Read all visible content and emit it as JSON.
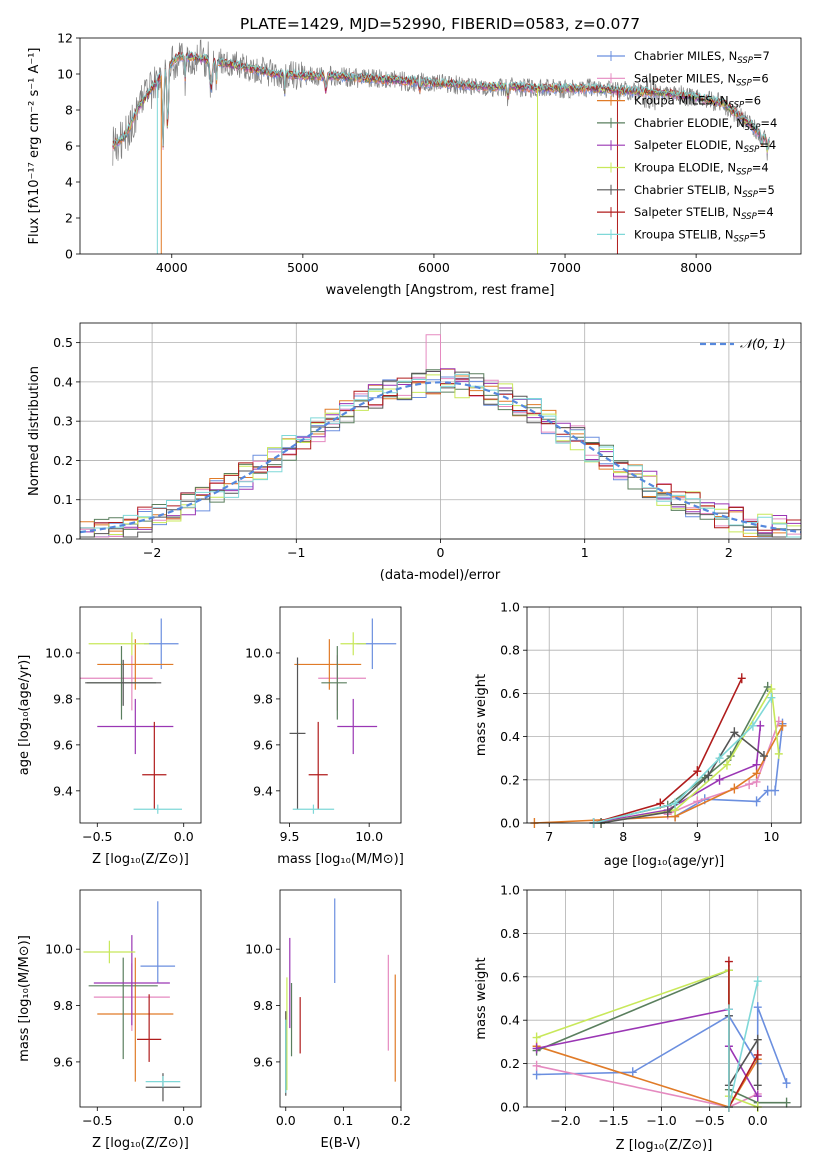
{
  "colors": {
    "chabrier_miles": "#6b8fdf",
    "salpeter_miles": "#e58ac0",
    "kroupa_miles": "#e07b28",
    "chabrier_elodie": "#5a7f5e",
    "salpeter_elodie": "#9a36b4",
    "kroupa_elodie": "#c8e85a",
    "chabrier_stelib": "#555555",
    "salpeter_stelib": "#b01c1c",
    "kroupa_stelib": "#7fd8d8",
    "gray_data": "#808080",
    "gauss": "#5588dd"
  },
  "chart_data": [
    {
      "id": "spectrum",
      "type": "line",
      "title": "PLATE=1429, MJD=52990, FIBERID=0583, z=0.077",
      "xlabel": "wavelength [Angstrom, rest frame]",
      "ylabel": "Flux [fλ10⁻¹⁷ erg cm⁻² s⁻¹ A⁻¹]",
      "xlim": [
        3300,
        8800
      ],
      "ylim": [
        0,
        12
      ],
      "xticks": [
        4000,
        5000,
        6000,
        7000,
        8000
      ],
      "yticks": [
        0,
        2,
        4,
        6,
        8,
        10,
        12
      ],
      "grid": false,
      "legend_position": "upper right",
      "legend": [
        "Chabrier MILES, N_SSP=7",
        "Salpeter MILES, N_SSP=6",
        "Kroupa MILES, N_SSP=6",
        "Chabrier ELODIE, N_SSP=4",
        "Salpeter ELODIE, N_SSP=4",
        "Kroupa ELODIE, N_SSP=4",
        "Chabrier STELIB, N_SSP=5",
        "Salpeter STELIB, N_SSP=4",
        "Kroupa STELIB, N_SSP=5"
      ],
      "model_continuum": {
        "x": [
          3550,
          3650,
          3750,
          3850,
          3950,
          4050,
          4200,
          4400,
          4600,
          4800,
          5000,
          5200,
          5400,
          5600,
          5800,
          6000,
          6200,
          6400,
          6600,
          6800,
          7000,
          7200,
          7400,
          7600,
          7800,
          8000,
          8200,
          8400,
          8550
        ],
        "y": [
          6.0,
          6.6,
          8.2,
          9.2,
          10.2,
          11.0,
          10.9,
          10.6,
          10.3,
          10.0,
          9.9,
          9.9,
          9.8,
          9.7,
          9.6,
          9.5,
          9.4,
          9.3,
          9.3,
          9.2,
          9.2,
          9.2,
          9.1,
          9.0,
          8.9,
          8.7,
          8.4,
          7.3,
          6.2
        ]
      }
    },
    {
      "id": "residuals",
      "type": "line",
      "xlabel": "(data-model)/error",
      "ylabel": "Normed distribution",
      "xlim": [
        -2.5,
        2.5
      ],
      "ylim": [
        0,
        0.55
      ],
      "xticks": [
        -2,
        -1,
        0,
        1,
        2
      ],
      "yticks": [
        0.0,
        0.1,
        0.2,
        0.3,
        0.4,
        0.5
      ],
      "grid": true,
      "legend_position": "upper right",
      "gauss_label": "𝒩(0, 1)",
      "hist_bin_width": 0.1
    },
    {
      "id": "age_vs_Z",
      "type": "scatter",
      "xlabel": "Z [log₁₀(Z/Z⊙)]",
      "ylabel": "age  [log₁₀(age/yr)]",
      "xlim": [
        -0.6,
        0.1
      ],
      "ylim": [
        9.26,
        10.2
      ],
      "xticks": [
        -0.5,
        0.0
      ],
      "yticks": [
        9.4,
        9.6,
        9.8,
        10.0
      ],
      "grid": false,
      "points": [
        {
          "model": "chabrier_miles",
          "x": -0.13,
          "xerr": [
            0.1,
            0.1
          ],
          "y": 10.04,
          "yerr": [
            0.11,
            0.11
          ]
        },
        {
          "model": "salpeter_miles",
          "x": -0.3,
          "xerr": [
            0.3,
            0.12
          ],
          "y": 9.89,
          "yerr": [
            0.14,
            0.1
          ]
        },
        {
          "model": "kroupa_miles",
          "x": -0.28,
          "xerr": [
            0.22,
            0.22
          ],
          "y": 9.95,
          "yerr": [
            0.11,
            0.11
          ]
        },
        {
          "model": "chabrier_elodie",
          "x": -0.36,
          "xerr": [
            0.2,
            0.2
          ],
          "y": 9.87,
          "yerr": [
            0.16,
            0.16
          ]
        },
        {
          "model": "salpeter_elodie",
          "x": -0.28,
          "xerr": [
            0.22,
            0.22
          ],
          "y": 9.68,
          "yerr": [
            0.12,
            0.12
          ]
        },
        {
          "model": "kroupa_elodie",
          "x": -0.3,
          "xerr": [
            0.25,
            0.1
          ],
          "y": 10.04,
          "yerr": [
            0.05,
            0.05
          ]
        },
        {
          "model": "chabrier_stelib",
          "x": -0.35,
          "xerr": [
            0.22,
            0.22
          ],
          "y": 9.87,
          "yerr": [
            0.1,
            0.1
          ]
        },
        {
          "model": "salpeter_stelib",
          "x": -0.17,
          "xerr": [
            0.07,
            0.07
          ],
          "y": 9.47,
          "yerr": [
            0.15,
            0.23
          ]
        },
        {
          "model": "kroupa_stelib",
          "x": -0.15,
          "xerr": [
            0.14,
            0.14
          ],
          "y": 9.32,
          "yerr": [
            0.02,
            0.02
          ]
        }
      ]
    },
    {
      "id": "age_vs_mass",
      "type": "scatter",
      "xlabel": "mass [log₁₀(M/M⊙)]",
      "xlim": [
        9.44,
        10.2
      ],
      "ylim": [
        9.26,
        10.2
      ],
      "xticks": [
        9.5,
        10.0
      ],
      "yticks": [
        9.4,
        9.6,
        9.8,
        10.0
      ],
      "grid": false,
      "points": [
        {
          "model": "chabrier_miles",
          "x": 10.02,
          "xerr": [
            0.1,
            0.15
          ],
          "y": 10.04,
          "yerr": [
            0.11,
            0.11
          ]
        },
        {
          "model": "salpeter_miles",
          "x": 9.8,
          "xerr": [
            0.12,
            0.18
          ],
          "y": 9.89,
          "yerr": [
            0.14,
            0.1
          ]
        },
        {
          "model": "kroupa_miles",
          "x": 9.75,
          "xerr": [
            0.22,
            0.2
          ],
          "y": 9.95,
          "yerr": [
            0.11,
            0.11
          ]
        },
        {
          "model": "chabrier_elodie",
          "x": 9.8,
          "xerr": [
            0.1,
            0.06
          ],
          "y": 9.87,
          "yerr": [
            0.16,
            0.16
          ]
        },
        {
          "model": "salpeter_elodie",
          "x": 9.9,
          "xerr": [
            0.1,
            0.15
          ],
          "y": 9.68,
          "yerr": [
            0.12,
            0.12
          ]
        },
        {
          "model": "kroupa_elodie",
          "x": 9.9,
          "xerr": [
            0.08,
            0.08
          ],
          "y": 10.04,
          "yerr": [
            0.05,
            0.05
          ]
        },
        {
          "model": "chabrier_stelib",
          "x": 9.55,
          "xerr": [
            0.05,
            0.05
          ],
          "y": 9.65,
          "yerr": [
            0.33,
            0.33
          ]
        },
        {
          "model": "salpeter_stelib",
          "x": 9.68,
          "xerr": [
            0.06,
            0.06
          ],
          "y": 9.47,
          "yerr": [
            0.15,
            0.23
          ]
        },
        {
          "model": "kroupa_stelib",
          "x": 9.65,
          "xerr": [
            0.13,
            0.13
          ],
          "y": 9.32,
          "yerr": [
            0.02,
            0.02
          ]
        }
      ]
    },
    {
      "id": "massweight_vs_age",
      "type": "line",
      "xlabel": "age  [log₁₀(age/yr)]",
      "ylabel": "mass weight",
      "xlim": [
        6.7,
        10.4
      ],
      "ylim": [
        0,
        1
      ],
      "xticks": [
        7,
        8,
        9,
        10
      ],
      "yticks": [
        0.0,
        0.2,
        0.4,
        0.6,
        0.8,
        1.0
      ],
      "grid": true,
      "series": [
        {
          "model": "chabrier_miles",
          "x": [
            8.7,
            9.1,
            9.8,
            9.95,
            10.05,
            10.15
          ],
          "y": [
            0.03,
            0.11,
            0.1,
            0.15,
            0.15,
            0.46
          ]
        },
        {
          "model": "salpeter_miles",
          "x": [
            8.6,
            9.0,
            9.7,
            9.8,
            10.1
          ],
          "y": [
            0.04,
            0.1,
            0.18,
            0.19,
            0.47
          ]
        },
        {
          "model": "kroupa_miles",
          "x": [
            6.8,
            8.7,
            9.5,
            9.8,
            10.15
          ],
          "y": [
            0.0,
            0.03,
            0.16,
            0.23,
            0.45
          ]
        },
        {
          "model": "chabrier_elodie",
          "x": [
            7.6,
            8.6,
            9.1,
            9.45,
            9.95
          ],
          "y": [
            0.0,
            0.08,
            0.21,
            0.31,
            0.63
          ]
        },
        {
          "model": "salpeter_elodie",
          "x": [
            7.6,
            8.6,
            9.3,
            9.8,
            9.85
          ],
          "y": [
            0.0,
            0.06,
            0.2,
            0.27,
            0.45
          ]
        },
        {
          "model": "kroupa_elodie",
          "x": [
            7.7,
            8.7,
            9.4,
            10.0,
            10.1
          ],
          "y": [
            0.0,
            0.06,
            0.27,
            0.62,
            0.32
          ]
        },
        {
          "model": "chabrier_stelib",
          "x": [
            7.7,
            8.6,
            9.15,
            9.5,
            9.9
          ],
          "y": [
            0.0,
            0.05,
            0.22,
            0.42,
            0.31
          ]
        },
        {
          "model": "salpeter_stelib",
          "x": [
            7.6,
            8.5,
            9.0,
            9.6
          ],
          "y": [
            0.0,
            0.09,
            0.24,
            0.67
          ]
        },
        {
          "model": "kroupa_stelib",
          "x": [
            7.6,
            8.7,
            9.3,
            9.75,
            10.0
          ],
          "y": [
            0.0,
            0.09,
            0.3,
            0.45,
            0.58
          ]
        }
      ]
    },
    {
      "id": "mass_vs_Z",
      "type": "scatter",
      "xlabel": "Z [log₁₀(Z/Z⊙)]",
      "ylabel": "mass [log₁₀(M/M⊙)]",
      "xlim": [
        -0.6,
        0.1
      ],
      "ylim": [
        9.44,
        10.21
      ],
      "xticks": [
        -0.5,
        0.0
      ],
      "yticks": [
        9.6,
        9.8,
        10.0
      ],
      "grid": false,
      "points": [
        {
          "model": "chabrier_miles",
          "x": -0.15,
          "xerr": [
            0.1,
            0.1
          ],
          "y": 9.94,
          "yerr": [
            0.06,
            0.23
          ]
        },
        {
          "model": "salpeter_miles",
          "x": -0.3,
          "xerr": [
            0.22,
            0.22
          ],
          "y": 9.83,
          "yerr": [
            0.12,
            0.12
          ]
        },
        {
          "model": "kroupa_miles",
          "x": -0.28,
          "xerr": [
            0.22,
            0.22
          ],
          "y": 9.77,
          "yerr": [
            0.24,
            0.2
          ]
        },
        {
          "model": "chabrier_elodie",
          "x": -0.35,
          "xerr": [
            0.2,
            0.2
          ],
          "y": 9.87,
          "yerr": [
            0.26,
            0.1
          ]
        },
        {
          "model": "salpeter_elodie",
          "x": -0.3,
          "xerr": [
            0.22,
            0.22
          ],
          "y": 9.88,
          "yerr": [
            0.15,
            0.17
          ]
        },
        {
          "model": "kroupa_elodie",
          "x": -0.43,
          "xerr": [
            0.15,
            0.15
          ],
          "y": 9.99,
          "yerr": [
            0.04,
            0.04
          ]
        },
        {
          "model": "chabrier_stelib",
          "x": -0.12,
          "xerr": [
            0.1,
            0.1
          ],
          "y": 9.51,
          "yerr": [
            0.05,
            0.05
          ]
        },
        {
          "model": "salpeter_stelib",
          "x": -0.2,
          "xerr": [
            0.07,
            0.07
          ],
          "y": 9.68,
          "yerr": [
            0.08,
            0.16
          ]
        },
        {
          "model": "kroupa_stelib",
          "x": -0.12,
          "xerr": [
            0.1,
            0.1
          ],
          "y": 9.53,
          "yerr": [
            0.02,
            0.02
          ]
        }
      ]
    },
    {
      "id": "mass_vs_ebv",
      "type": "scatter",
      "xlabel": "E(B-V)",
      "xlim": [
        -0.01,
        0.2
      ],
      "ylim": [
        9.44,
        10.21
      ],
      "xticks": [
        0.0,
        0.1,
        0.2
      ],
      "yticks": [
        9.6,
        9.8,
        10.0
      ],
      "grid": false,
      "points": [
        {
          "model": "chabrier_miles",
          "x": 0.085,
          "xerr": [
            0,
            0
          ],
          "y": 10.03,
          "yerr": [
            0.15,
            0.15
          ]
        },
        {
          "model": "salpeter_miles",
          "x": 0.178,
          "xerr": [
            0,
            0
          ],
          "y": 9.81,
          "yerr": [
            0.17,
            0.17
          ]
        },
        {
          "model": "kroupa_miles",
          "x": 0.19,
          "xerr": [
            0,
            0
          ],
          "y": 9.72,
          "yerr": [
            0.19,
            0.19
          ]
        },
        {
          "model": "chabrier_elodie",
          "x": 0.01,
          "xerr": [
            0,
            0
          ],
          "y": 9.75,
          "yerr": [
            0.13,
            0.13
          ]
        },
        {
          "model": "salpeter_elodie",
          "x": 0.007,
          "xerr": [
            0,
            0
          ],
          "y": 9.88,
          "yerr": [
            0.16,
            0.16
          ]
        },
        {
          "model": "kroupa_elodie",
          "x": 0.002,
          "xerr": [
            0,
            0
          ],
          "y": 9.7,
          "yerr": [
            0.2,
            0.2
          ]
        },
        {
          "model": "chabrier_stelib",
          "x": 0.0,
          "xerr": [
            0,
            0
          ],
          "y": 9.63,
          "yerr": [
            0.15,
            0.15
          ]
        },
        {
          "model": "salpeter_stelib",
          "x": 0.025,
          "xerr": [
            0,
            0
          ],
          "y": 9.73,
          "yerr": [
            0.1,
            0.1
          ]
        },
        {
          "model": "kroupa_stelib",
          "x": 0.0,
          "xerr": [
            0,
            0
          ],
          "y": 9.62,
          "yerr": [
            0.13,
            0.13
          ]
        }
      ]
    },
    {
      "id": "massweight_vs_Z",
      "type": "line",
      "xlabel": "Z [log₁₀(Z/Z⊙)]",
      "ylabel": "mass weight",
      "xlim": [
        -2.4,
        0.45
      ],
      "ylim": [
        0,
        1
      ],
      "xticks": [
        -2.0,
        -1.5,
        -1.0,
        -0.5,
        0.0
      ],
      "yticks": [
        0.0,
        0.2,
        0.4,
        0.6,
        0.8,
        1.0
      ],
      "grid": true,
      "series": [
        {
          "model": "chabrier_miles",
          "x": [
            -2.3,
            -1.3,
            -0.3,
            0.0,
            0.0,
            0.3
          ],
          "y": [
            0.15,
            0.16,
            0.42,
            0.2,
            0.46,
            0.11
          ]
        },
        {
          "model": "salpeter_miles",
          "x": [
            -2.3,
            -0.3,
            0.0
          ],
          "y": [
            0.19,
            0.0,
            0.06
          ]
        },
        {
          "model": "kroupa_miles",
          "x": [
            -2.3,
            -0.3,
            0.0
          ],
          "y": [
            0.28,
            0.0,
            0.22
          ]
        },
        {
          "model": "chabrier_elodie",
          "x": [
            -2.3,
            -0.3,
            -0.3,
            0.0,
            0.3
          ],
          "y": [
            0.26,
            0.63,
            0.08,
            0.02,
            0.02
          ]
        },
        {
          "model": "salpeter_elodie",
          "x": [
            -2.3,
            -0.3,
            -0.3,
            0.0
          ],
          "y": [
            0.27,
            0.45,
            0.28,
            0.05
          ]
        },
        {
          "model": "kroupa_elodie",
          "x": [
            -2.3,
            -0.3,
            -0.3,
            0.0
          ],
          "y": [
            0.32,
            0.63,
            0.05,
            0.0
          ]
        },
        {
          "model": "chabrier_stelib",
          "x": [
            -0.3,
            -0.3,
            0.0,
            0.0
          ],
          "y": [
            0.42,
            0.1,
            0.31,
            0.1
          ]
        },
        {
          "model": "salpeter_stelib",
          "x": [
            -0.3,
            -0.3,
            0.0
          ],
          "y": [
            0.67,
            0.0,
            0.24
          ]
        },
        {
          "model": "kroupa_stelib",
          "x": [
            -0.3,
            -0.3,
            0.0
          ],
          "y": [
            0.45,
            0.0,
            0.58
          ]
        }
      ]
    }
  ]
}
